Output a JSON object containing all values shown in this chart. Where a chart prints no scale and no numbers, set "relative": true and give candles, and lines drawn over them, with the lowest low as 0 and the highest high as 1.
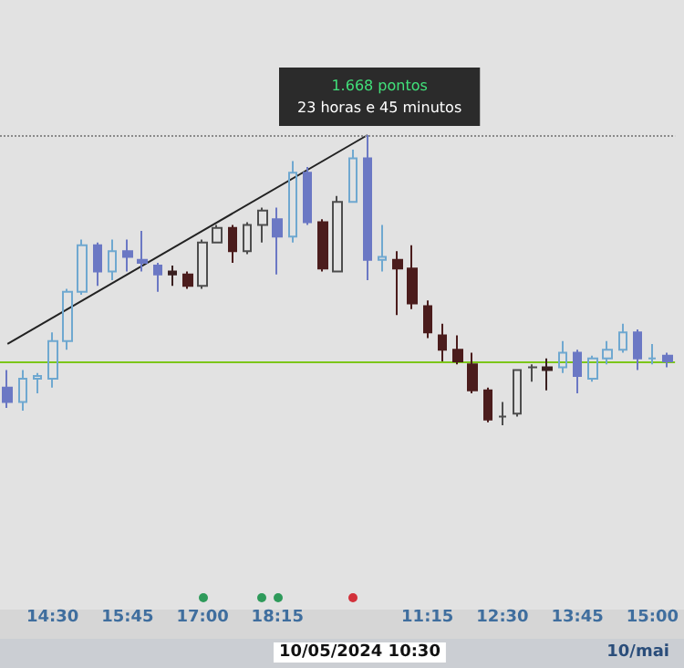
{
  "chart_data": {
    "type": "candlestick",
    "relative": true,
    "grid": false,
    "categories": [
      null,
      null,
      null,
      "14:30",
      null,
      null,
      null,
      null,
      "15:45",
      null,
      null,
      null,
      null,
      "17:00",
      null,
      null,
      null,
      null,
      "18:15",
      null,
      null,
      null,
      null,
      null,
      null,
      null,
      null,
      null,
      "11:15",
      null,
      null,
      null,
      null,
      "12:30",
      null,
      null,
      null,
      null,
      "13:45",
      null,
      null,
      null,
      null,
      "15:00",
      null
    ],
    "ohlc": [
      [
        0.13,
        0.19,
        0.06,
        0.08
      ],
      [
        0.08,
        0.19,
        0.05,
        0.16
      ],
      [
        0.16,
        0.18,
        0.11,
        0.17
      ],
      [
        0.16,
        0.32,
        0.13,
        0.29
      ],
      [
        0.29,
        0.47,
        0.26,
        0.46
      ],
      [
        0.46,
        0.64,
        0.45,
        0.62
      ],
      [
        0.62,
        0.63,
        0.48,
        0.53
      ],
      [
        0.53,
        0.64,
        0.5,
        0.6
      ],
      [
        0.6,
        0.64,
        0.53,
        0.58
      ],
      [
        0.57,
        0.67,
        0.53,
        0.56
      ],
      [
        0.55,
        0.56,
        0.46,
        0.52
      ],
      [
        0.53,
        0.55,
        0.48,
        0.52
      ],
      [
        0.52,
        0.53,
        0.47,
        0.48
      ],
      [
        0.48,
        0.64,
        0.47,
        0.63
      ],
      [
        0.63,
        0.69,
        0.63,
        0.68
      ],
      [
        0.68,
        0.69,
        0.56,
        0.6
      ],
      [
        0.6,
        0.7,
        0.59,
        0.69
      ],
      [
        0.69,
        0.75,
        0.63,
        0.74
      ],
      [
        0.71,
        0.75,
        0.52,
        0.65
      ],
      [
        0.65,
        0.91,
        0.63,
        0.87
      ],
      [
        0.87,
        0.89,
        0.69,
        0.7
      ],
      [
        0.7,
        0.71,
        0.53,
        0.54
      ],
      [
        0.53,
        0.79,
        0.53,
        0.77
      ],
      [
        0.77,
        0.95,
        0.77,
        0.92
      ],
      [
        0.92,
        1,
        0.5,
        0.57
      ],
      [
        0.57,
        0.69,
        0.53,
        0.58
      ],
      [
        0.57,
        0.6,
        0.38,
        0.54
      ],
      [
        0.54,
        0.62,
        0.4,
        0.42
      ],
      [
        0.41,
        0.43,
        0.3,
        0.32
      ],
      [
        0.31,
        0.35,
        0.22,
        0.26
      ],
      [
        0.26,
        0.31,
        0.21,
        0.22
      ],
      [
        0.21,
        0.25,
        0.11,
        0.12
      ],
      [
        0.12,
        0.13,
        0.01,
        0.02
      ],
      [
        0.03,
        0.08,
        0,
        0.03
      ],
      [
        0.04,
        0.19,
        0.03,
        0.19
      ],
      [
        0.2,
        0.21,
        0.15,
        0.2
      ],
      [
        0.2,
        0.23,
        0.12,
        0.19
      ],
      [
        0.2,
        0.29,
        0.18,
        0.25
      ],
      [
        0.25,
        0.26,
        0.11,
        0.17
      ],
      [
        0.16,
        0.24,
        0.15,
        0.23
      ],
      [
        0.23,
        0.29,
        0.21,
        0.26
      ],
      [
        0.26,
        0.35,
        0.25,
        0.32
      ],
      [
        0.32,
        0.33,
        0.19,
        0.23
      ],
      [
        0.23,
        0.28,
        0.21,
        0.23
      ],
      [
        0.24,
        0.25,
        0.2,
        0.22
      ]
    ],
    "colors": [
      "#6b78c4",
      "#6fa8d0",
      "#6fa8d0",
      "#6fa8d0",
      "#6fa8d0",
      "#6fa8d0",
      "#6b78c4",
      "#6fa8d0",
      "#6b78c4",
      "#6b78c4",
      "#6b78c4",
      "#3a2020",
      "#4b1c1c",
      "#4d4d4d",
      "#4d4d4d",
      "#4b1c1c",
      "#4d4d4d",
      "#4d4d4d",
      "#6b78c4",
      "#6fa8d0",
      "#6b78c4",
      "#4b1c1c",
      "#4d4d4d",
      "#6fa8d0",
      "#6b78c4",
      "#6fa8d0",
      "#4b1c1c",
      "#4b1c1c",
      "#4b1c1c",
      "#4b1c1c",
      "#4b1c1c",
      "#4b1c1c",
      "#4b1c1c",
      "#4d4d4d",
      "#4d4d4d",
      "#4d4d4d",
      "#3a2020",
      "#6fa8d0",
      "#6b78c4",
      "#6fa8d0",
      "#6fa8d0",
      "#6fa8d0",
      "#6b78c4",
      "#6fa8d0",
      "#6b78c4"
    ],
    "series": [
      {
        "type": "line",
        "color": "#222222",
        "marker": "none",
        "values": [
          0.28,
          null,
          null,
          null,
          null,
          null,
          null,
          null,
          null,
          null,
          null,
          null,
          null,
          null,
          null,
          null,
          null,
          null,
          null,
          null,
          null,
          null,
          null,
          null,
          1,
          null,
          null,
          null,
          null,
          null,
          null,
          null,
          null,
          null,
          null,
          null,
          null,
          null,
          null,
          null,
          null,
          null,
          null,
          null,
          null
        ]
      }
    ],
    "ref_lines": [
      {
        "axis": "y",
        "value": 0.22,
        "color": "#7cc61a",
        "line_style": "solid"
      },
      {
        "axis": "y",
        "value": 1,
        "color": "#8a8a8a",
        "line_style": "dotted"
      }
    ],
    "annotations": [
      "1.668 pontos",
      "23 horas e 45 minutos",
      "10/05/2024 10:30",
      "10/mai"
    ]
  }
}
